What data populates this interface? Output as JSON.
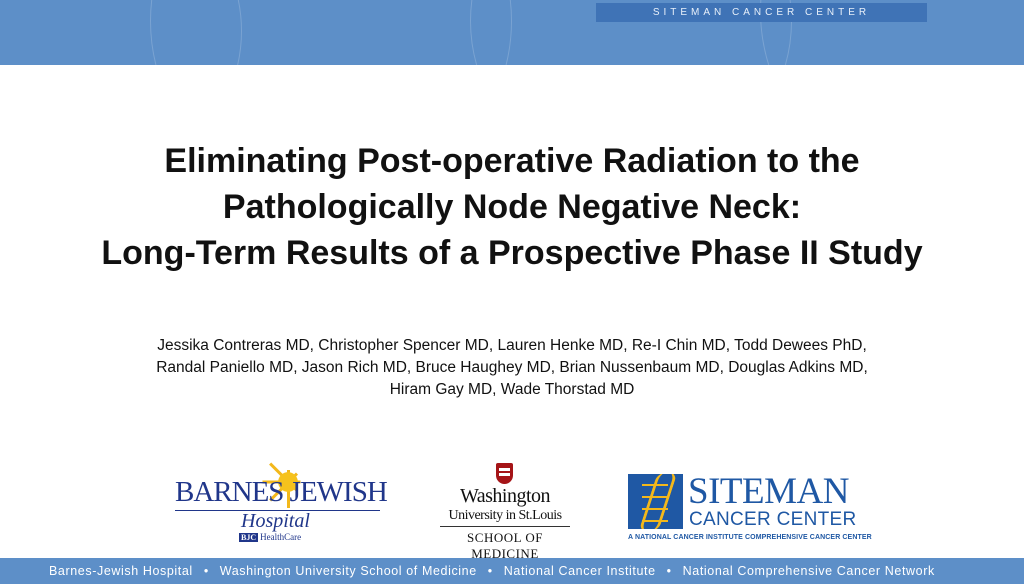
{
  "header": {
    "brand_tab": "SITEMAN CANCER CENTER"
  },
  "title": {
    "line1": "Eliminating Post-operative Radiation to the",
    "line2": "Pathologically Node Negative Neck:",
    "line3": "Long-Term Results of a Prospective Phase II Study"
  },
  "authors": {
    "line1": "Jessika Contreras MD, Christopher Spencer MD, Lauren Henke MD, Re-I Chin MD, Todd Dewees PhD,",
    "line2": "Randal Paniello MD, Jason Rich MD, Bruce Haughey MD, Brian Nussenbaum MD, Douglas Adkins MD,",
    "line3": "Hiram Gay MD, Wade Thorstad MD"
  },
  "logos": {
    "bjh": {
      "name": "BARNES JEWISH",
      "hospital": "Hospital",
      "bjc": "BJC",
      "healthcare": "HealthCare"
    },
    "wu": {
      "line1": "Washington",
      "line2": "University in St.Louis",
      "line3": "SCHOOL OF MEDICINE"
    },
    "siteman": {
      "line1": "SITEMAN",
      "line2": "CANCER CENTER",
      "tagline": "A NATIONAL CANCER INSTITUTE COMPREHENSIVE CANCER CENTER"
    }
  },
  "footer": {
    "items": [
      "Barnes-Jewish Hospital",
      "Washington University School of Medicine",
      "National Cancer Institute",
      "National Comprehensive Cancer Network"
    ],
    "separator": "•"
  },
  "colors": {
    "band": "#5d8fc8",
    "brand_tab": "#3f73b6",
    "navy": "#20368a",
    "siteman_blue": "#1f58a4",
    "gold": "#f3b81b",
    "wu_red": "#a51417"
  }
}
